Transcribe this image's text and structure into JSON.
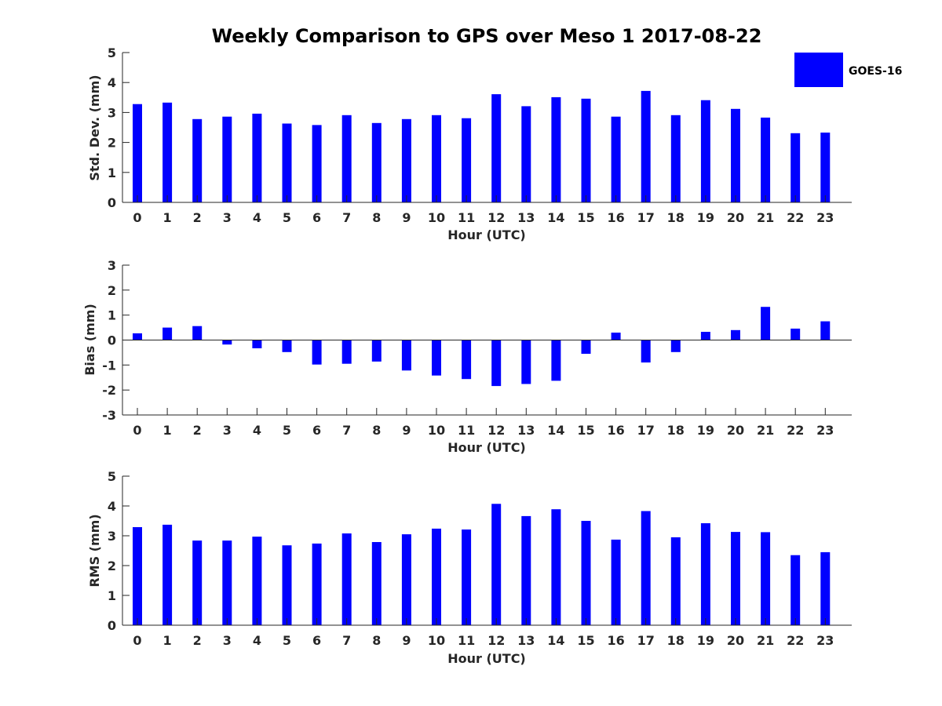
{
  "chart_data": {
    "type": "bar",
    "title": "Weekly Comparison to GPS over Meso 1 2017-08-22",
    "legend": {
      "entries": [
        "GOES-16"
      ],
      "placement": "top-right"
    },
    "colors": {
      "series": "#0000ff",
      "axis": "#262626"
    },
    "panels": [
      {
        "id": "std",
        "ylabel": "Std. Dev. (mm)",
        "xlabel": "Hour (UTC)",
        "ylim": [
          0,
          5
        ],
        "yticks": [
          "0",
          "1",
          "2",
          "3",
          "4",
          "5"
        ],
        "zero_line": false,
        "categories": [
          "0",
          "1",
          "2",
          "3",
          "4",
          "5",
          "6",
          "7",
          "8",
          "9",
          "10",
          "11",
          "12",
          "13",
          "14",
          "15",
          "16",
          "17",
          "18",
          "19",
          "20",
          "21",
          "22",
          "23"
        ],
        "series": [
          {
            "name": "GOES-16",
            "values": [
              3.28,
              3.33,
              2.78,
              2.86,
              2.96,
              2.63,
              2.58,
              2.91,
              2.65,
              2.78,
              2.91,
              2.81,
              3.61,
              3.21,
              3.51,
              3.46,
              2.86,
              3.72,
              2.91,
              3.41,
              3.12,
              2.83,
              2.31,
              2.33
            ]
          }
        ]
      },
      {
        "id": "bias",
        "ylabel": "Bias (mm)",
        "xlabel": "Hour (UTC)",
        "ylim": [
          -3,
          3
        ],
        "yticks": [
          "-3",
          "-2",
          "-1",
          "0",
          "1",
          "2",
          "3"
        ],
        "zero_line": true,
        "categories": [
          "0",
          "1",
          "2",
          "3",
          "4",
          "5",
          "6",
          "7",
          "8",
          "9",
          "10",
          "11",
          "12",
          "13",
          "14",
          "15",
          "16",
          "17",
          "18",
          "19",
          "20",
          "21",
          "22",
          "23"
        ],
        "series": [
          {
            "name": "GOES-16",
            "values": [
              0.27,
              0.5,
              0.56,
              -0.18,
              -0.33,
              -0.48,
              -0.98,
              -0.95,
              -0.86,
              -1.22,
              -1.42,
              -1.56,
              -1.84,
              -1.76,
              -1.63,
              -0.55,
              0.3,
              -0.9,
              -0.48,
              0.33,
              0.4,
              1.33,
              0.46,
              0.75
            ]
          }
        ]
      },
      {
        "id": "rms",
        "ylabel": "RMS (mm)",
        "xlabel": "Hour (UTC)",
        "ylim": [
          0,
          5
        ],
        "yticks": [
          "0",
          "1",
          "2",
          "3",
          "4",
          "5"
        ],
        "zero_line": false,
        "categories": [
          "0",
          "1",
          "2",
          "3",
          "4",
          "5",
          "6",
          "7",
          "8",
          "9",
          "10",
          "11",
          "12",
          "13",
          "14",
          "15",
          "16",
          "17",
          "18",
          "19",
          "20",
          "21",
          "22",
          "23"
        ],
        "series": [
          {
            "name": "GOES-16",
            "values": [
              3.29,
              3.37,
              2.84,
              2.84,
              2.97,
              2.68,
              2.74,
              3.08,
              2.79,
              3.05,
              3.24,
              3.21,
              4.07,
              3.66,
              3.89,
              3.5,
              2.87,
              3.83,
              2.95,
              3.42,
              3.13,
              3.12,
              2.35,
              2.45
            ]
          }
        ]
      }
    ]
  }
}
